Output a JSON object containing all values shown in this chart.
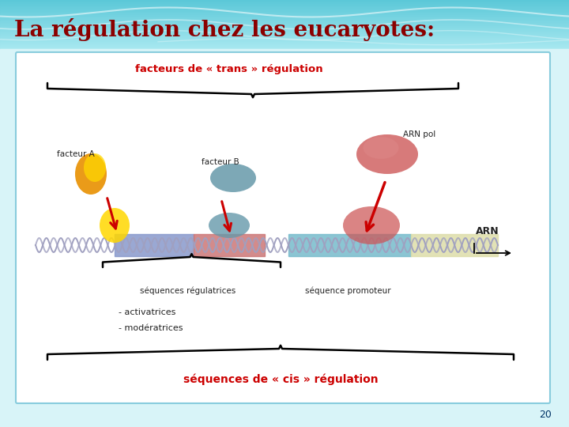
{
  "title": "La régulation chez les eucaryotes:",
  "title_color": "#8B0000",
  "title_fontsize": 20,
  "bg_top": "#5BC8D8",
  "bg_bottom": "#A8E8F0",
  "slide_bg": "#D8F4F8",
  "box_border": "#88CCDD",
  "trans_label": "facteurs de « trans » régulation",
  "trans_color": "#CC0000",
  "cis_label": "séquences de « cis » régulation",
  "cis_color": "#CC0000",
  "facteur_a_label": "facteur A",
  "facteur_b_label": "facteur B",
  "arn_pol_label": "ARN pol",
  "arn_label": "ARN",
  "seq_reg_label": "séquences régulatrices",
  "seq_prom_label": "séquence promoteur",
  "bullet1": "- activatrices",
  "bullet2": "- modératrices",
  "page_number": "20",
  "dna_color": "#A0A0C0",
  "seq1_color": "#8899CC",
  "seq2_color": "#CC7777",
  "seq3_color": "#77BBCC",
  "seq4_color": "#DDDDAA",
  "facteur_a_dark": "#E89000",
  "facteur_a_light": "#FFD700",
  "facteur_b_color": "#6699AA",
  "arn_pol_color": "#CC5555",
  "arrow_color": "#CC0000",
  "text_color": "#222222"
}
